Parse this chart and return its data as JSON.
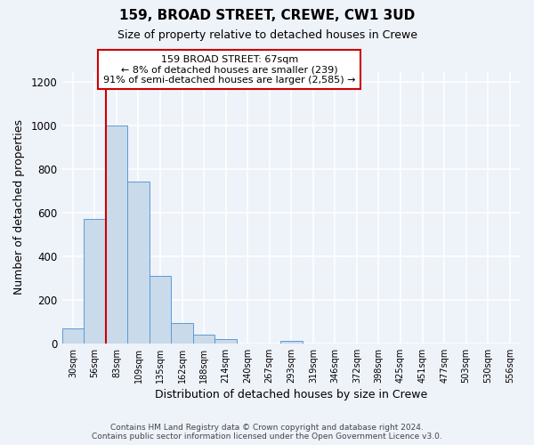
{
  "title": "159, BROAD STREET, CREWE, CW1 3UD",
  "subtitle": "Size of property relative to detached houses in Crewe",
  "xlabel": "Distribution of detached houses by size in Crewe",
  "ylabel": "Number of detached properties",
  "bin_labels": [
    "30sqm",
    "56sqm",
    "83sqm",
    "109sqm",
    "135sqm",
    "162sqm",
    "188sqm",
    "214sqm",
    "240sqm",
    "267sqm",
    "293sqm",
    "319sqm",
    "346sqm",
    "372sqm",
    "398sqm",
    "425sqm",
    "451sqm",
    "477sqm",
    "503sqm",
    "530sqm",
    "556sqm"
  ],
  "bar_values": [
    70,
    570,
    1000,
    745,
    310,
    95,
    40,
    20,
    0,
    0,
    10,
    0,
    0,
    0,
    0,
    0,
    0,
    0,
    0,
    0,
    0
  ],
  "bar_color": "#c9daea",
  "bar_edge_color": "#5b9bd5",
  "vline_bin_index": 2,
  "vline_color": "#cc0000",
  "ylim": [
    0,
    1250
  ],
  "yticks": [
    0,
    200,
    400,
    600,
    800,
    1000,
    1200
  ],
  "annotation_box_text": "159 BROAD STREET: 67sqm\n← 8% of detached houses are smaller (239)\n91% of semi-detached houses are larger (2,585) →",
  "annotation_box_color": "#ffffff",
  "annotation_box_edge_color": "#cc0000",
  "footer_line1": "Contains HM Land Registry data © Crown copyright and database right 2024.",
  "footer_line2": "Contains public sector information licensed under the Open Government Licence v3.0.",
  "background_color": "#eef2f9",
  "grid_color": "#ffffff",
  "bin_count": 21,
  "bin_width": 26
}
